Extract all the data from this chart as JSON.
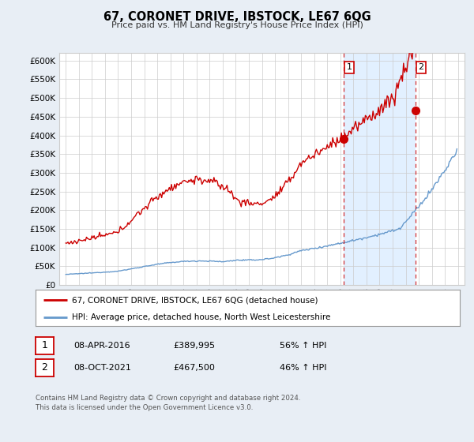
{
  "title": "67, CORONET DRIVE, IBSTOCK, LE67 6QG",
  "subtitle": "Price paid vs. HM Land Registry's House Price Index (HPI)",
  "ylim": [
    0,
    620000
  ],
  "yticks": [
    0,
    50000,
    100000,
    150000,
    200000,
    250000,
    300000,
    350000,
    400000,
    450000,
    500000,
    550000,
    600000
  ],
  "xlim_start": 1994.5,
  "xlim_end": 2025.5,
  "red_color": "#cc0000",
  "blue_color": "#6699cc",
  "shade_color": "#ddeeff",
  "marker1_x": 2016.27,
  "marker1_y": 389995,
  "marker2_x": 2021.77,
  "marker2_y": 467500,
  "vline1_x": 2016.27,
  "vline2_x": 2021.77,
  "legend_label_red": "67, CORONET DRIVE, IBSTOCK, LE67 6QG (detached house)",
  "legend_label_blue": "HPI: Average price, detached house, North West Leicestershire",
  "annotation1_label": "1",
  "annotation1_date": "08-APR-2016",
  "annotation1_price": "£389,995",
  "annotation1_hpi": "56% ↑ HPI",
  "annotation2_label": "2",
  "annotation2_date": "08-OCT-2021",
  "annotation2_price": "£467,500",
  "annotation2_hpi": "46% ↑ HPI",
  "footnote1": "Contains HM Land Registry data © Crown copyright and database right 2024.",
  "footnote2": "This data is licensed under the Open Government Licence v3.0.",
  "bg_color": "#e8eef5",
  "plot_bg_color": "#ffffff",
  "grid_color": "#cccccc"
}
